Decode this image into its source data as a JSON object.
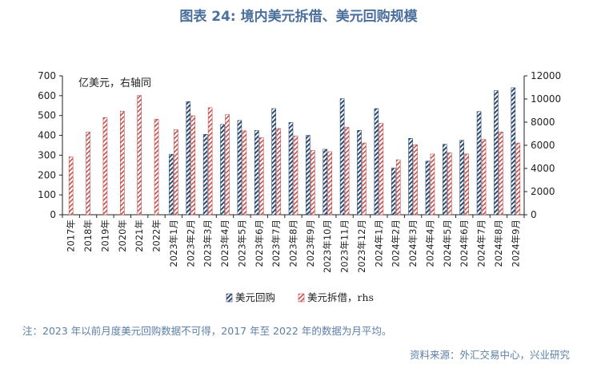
{
  "title": "图表 24: 境内美元拆借、美元回购规模",
  "note": "注：2023 年以前月度美元回购数据不可得，2017 年至 2022 年的数据为月平均。",
  "source": "资料来源：外汇交易中心，兴业研究",
  "colors": {
    "title": "#4a6f9c",
    "repo": "#2e4a73",
    "lending": "#c0504d",
    "note": "#5b7fa6"
  },
  "chart_data": {
    "type": "bar",
    "annotation": "亿美元，右轴同",
    "categories": [
      "2017年",
      "2018年",
      "2019年",
      "2020年",
      "2021年",
      "2022年",
      "2023年1月",
      "2023年2月",
      "2023年3月",
      "2023年4月",
      "2023年5月",
      "2023年6月",
      "2023年7月",
      "2023年8月",
      "2023年9月",
      "2023年10月",
      "2023年11月",
      "2023年12月",
      "2024年1月",
      "2024年2月",
      "2024年3月",
      "2024年4月",
      "2024年5月",
      "2024年6月",
      "2024年7月",
      "2024年8月",
      "2024年9月"
    ],
    "y_left": {
      "ticks": [
        "0",
        "100",
        "200",
        "300",
        "400",
        "500",
        "600",
        "700"
      ],
      "min": 0,
      "max": 700
    },
    "y_right": {
      "ticks": [
        "0",
        "2000",
        "4000",
        "6000",
        "8000",
        "10000",
        "12000"
      ],
      "min": 0,
      "max": 12000
    },
    "grid": false,
    "legend_position": "bottom",
    "series": [
      {
        "name": "美元回购",
        "axis": "left",
        "pattern": "hatch-dark",
        "values": [
          null,
          null,
          null,
          null,
          null,
          null,
          305,
          570,
          405,
          455,
          475,
          425,
          535,
          465,
          400,
          330,
          585,
          425,
          535,
          235,
          385,
          270,
          355,
          375,
          520,
          625,
          640
        ]
      },
      {
        "name": "美元拆借，rhs",
        "axis": "right",
        "pattern": "hatch-red",
        "values": [
          5000,
          7150,
          8400,
          8950,
          10300,
          8250,
          7350,
          8550,
          9250,
          8650,
          7250,
          6650,
          7450,
          6800,
          5550,
          5450,
          7550,
          6200,
          7900,
          4750,
          6050,
          5250,
          5350,
          5250,
          6500,
          7150,
          6200
        ]
      }
    ]
  }
}
